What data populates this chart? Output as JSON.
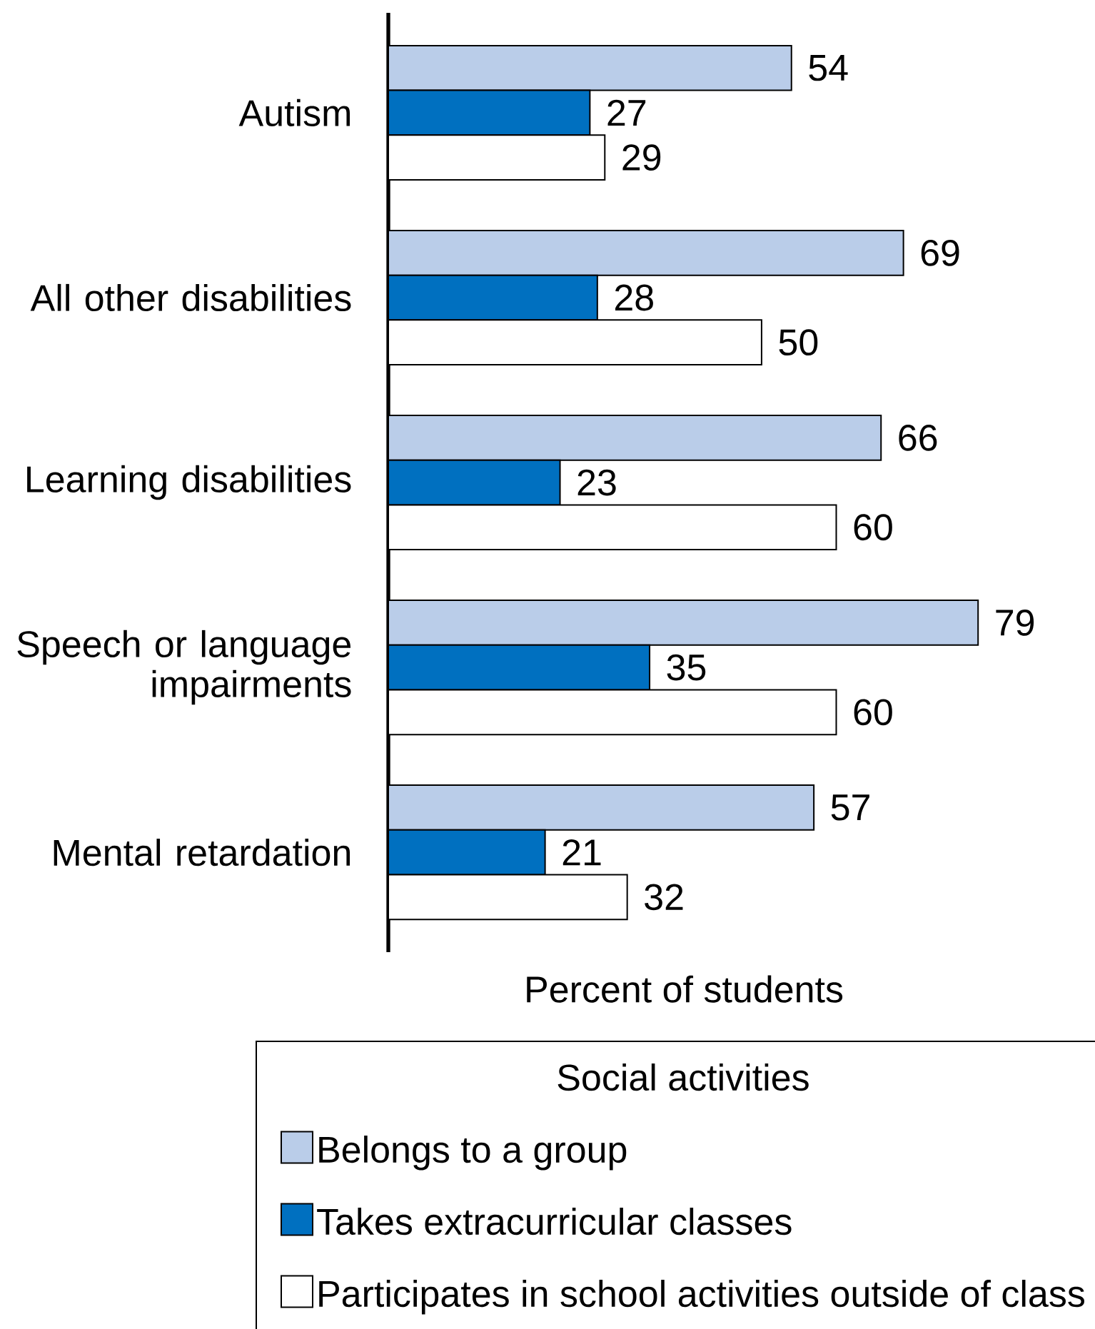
{
  "chart_data": {
    "type": "bar",
    "orientation": "horizontal",
    "categories": [
      "Autism",
      "All other disabilities",
      "Learning disabilities",
      "Speech or language impairments",
      "Mental retardation"
    ],
    "series": [
      {
        "name": "Belongs to a group",
        "color": "#bacde9",
        "values": [
          54,
          69,
          66,
          79,
          57
        ]
      },
      {
        "name": "Takes extracurricular classes",
        "color": "#0070c0",
        "values": [
          27,
          28,
          23,
          35,
          21
        ]
      },
      {
        "name": "Participates in school activities outside of class",
        "color": "#ffffff",
        "values": [
          29,
          50,
          60,
          60,
          32
        ]
      }
    ],
    "xlabel": "Percent of students",
    "legend_title": "Social activities",
    "legend": "bottom",
    "data_labels": true,
    "tick_labels": "y"
  }
}
